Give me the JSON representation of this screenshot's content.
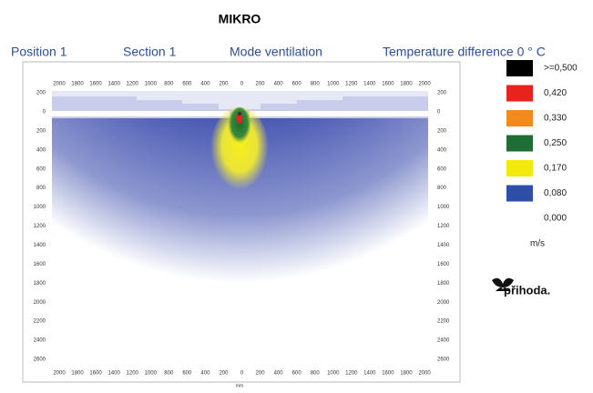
{
  "title": "MIKRO",
  "header": {
    "position": "Position  1",
    "section": "Section  1",
    "mode": "Mode ventilation",
    "temperature": "Temperature difference  0 ° C"
  },
  "plot": {
    "x_labels": [
      "2000",
      "1800",
      "1600",
      "1400",
      "1200",
      "1000",
      "800",
      "600",
      "400",
      "200",
      "0",
      "200",
      "400",
      "600",
      "800",
      "1000",
      "1200",
      "1400",
      "1600",
      "1800",
      "2000"
    ],
    "y_labels": [
      "200",
      "0",
      "200",
      "400",
      "600",
      "800",
      "1000",
      "1200",
      "1400",
      "1600",
      "1800",
      "2000",
      "2200",
      "2400",
      "2600"
    ],
    "x_unit": "mm"
  },
  "legend": {
    "items": [
      {
        "label": ">=0,500",
        "color": "#000000"
      },
      {
        "label": "0,420",
        "color": "#e8231d"
      },
      {
        "label": "0,330",
        "color": "#f28a1e"
      },
      {
        "label": "0,250",
        "color": "#1e6e35"
      },
      {
        "label": "0,170",
        "color": "#f2ea0c"
      },
      {
        "label": "0,080",
        "color": "#2f4ea8"
      },
      {
        "label": "0,000",
        "color": "#ffffff"
      }
    ],
    "unit": "m/s"
  },
  "logo": "přihoda."
}
